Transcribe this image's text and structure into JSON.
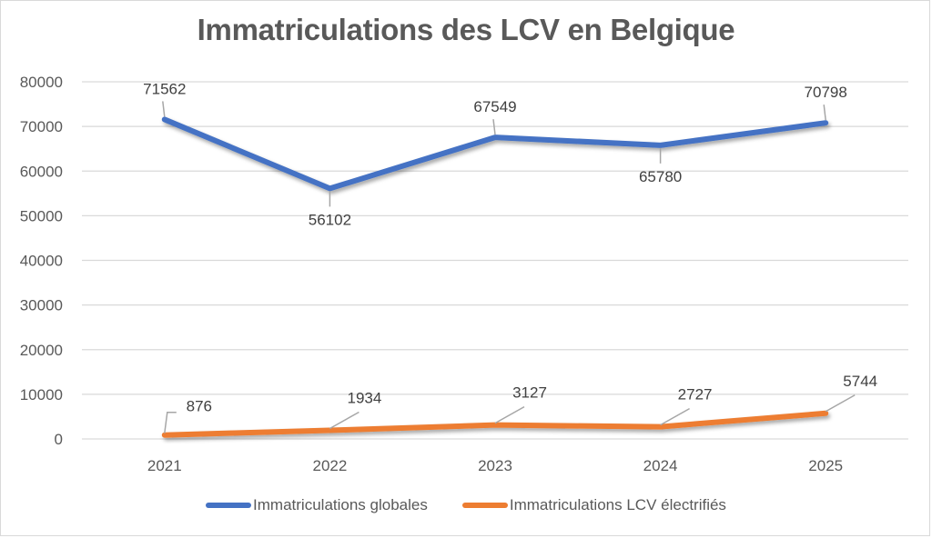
{
  "chart_data": {
    "type": "line",
    "title": "Immatriculations des LCV en Belgique",
    "xlabel": "",
    "ylabel": "",
    "categories": [
      "2021",
      "2022",
      "2023",
      "2024",
      "2025"
    ],
    "ylim": [
      0,
      80000
    ],
    "yticks": [
      0,
      10000,
      20000,
      30000,
      40000,
      50000,
      60000,
      70000,
      80000
    ],
    "ytick_labels": [
      "0",
      "10000",
      "20000",
      "30000",
      "40000",
      "50000",
      "60000",
      "70000",
      "80000"
    ],
    "grid": true,
    "legend_position": "bottom",
    "series": [
      {
        "name": "Immatriculations globales",
        "color": "#4472C4",
        "values": [
          71562,
          56102,
          67549,
          65780,
          70798
        ],
        "labels": [
          "71562",
          "56102",
          "67549",
          "65780",
          "70798"
        ],
        "label_positions": [
          "above",
          "below",
          "above",
          "below",
          "above"
        ]
      },
      {
        "name": "Immatriculations LCV électrifiés",
        "color": "#ED7D31",
        "values": [
          876,
          1934,
          3127,
          2727,
          5744
        ],
        "labels": [
          "876",
          "1934",
          "3127",
          "2727",
          "5744"
        ],
        "label_positions": [
          "above-right",
          "above",
          "above",
          "above",
          "above"
        ]
      }
    ]
  }
}
